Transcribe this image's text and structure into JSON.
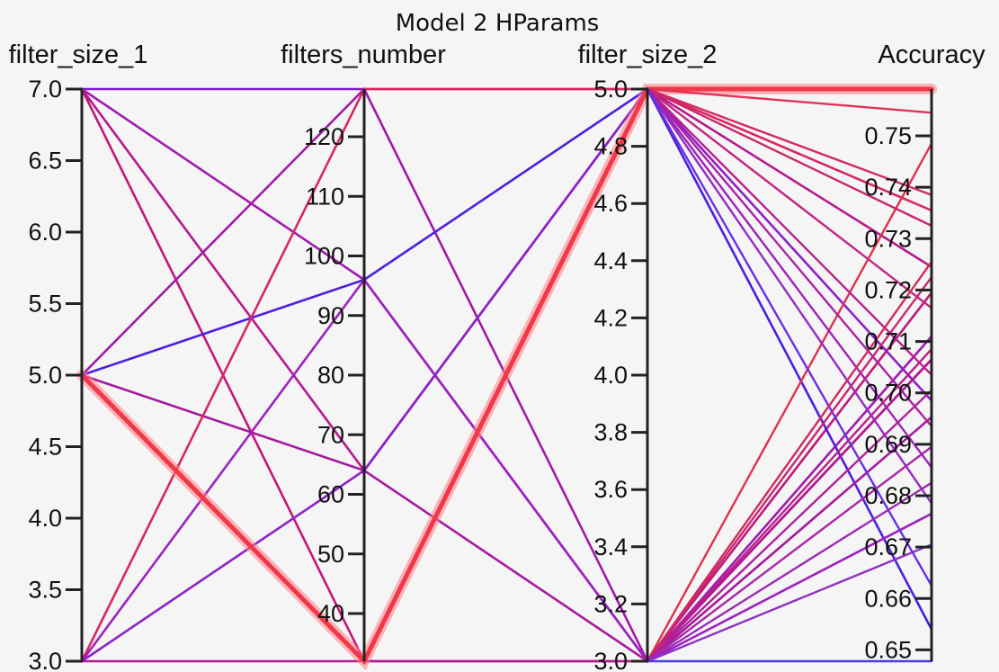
{
  "chart_data": {
    "type": "parallel_coordinates",
    "title": "Model 2 HParams",
    "axes": [
      {
        "key": "filter_size_1",
        "label": "filter_size_1",
        "range": [
          3.0,
          7.0
        ],
        "ticks": [
          "3.0",
          "3.5",
          "4.0",
          "4.5",
          "5.0",
          "5.5",
          "6.0",
          "6.5",
          "7.0"
        ]
      },
      {
        "key": "filters_number",
        "label": "filters_number",
        "range": [
          32,
          128
        ],
        "ticks": [
          "40",
          "50",
          "60",
          "70",
          "80",
          "90",
          "100",
          "110",
          "120"
        ]
      },
      {
        "key": "filter_size_2",
        "label": "filter_size_2",
        "range": [
          3.0,
          5.0
        ],
        "ticks": [
          "3.0",
          "3.2",
          "3.4",
          "3.6",
          "3.8",
          "4.0",
          "4.2",
          "4.4",
          "4.6",
          "4.8",
          "5.0"
        ]
      },
      {
        "key": "accuracy",
        "label": "Accuracy",
        "range": [
          0.6478,
          0.7591
        ],
        "ticks": [
          "0.65",
          "0.66",
          "0.67",
          "0.68",
          "0.69",
          "0.70",
          "0.71",
          "0.72",
          "0.73",
          "0.74",
          "0.75"
        ]
      }
    ],
    "records": [
      {
        "filter_size_1": 7,
        "filters_number": 128,
        "filter_size_2": 5,
        "accuracy": 0.7591,
        "color": "#7c1ac8"
      },
      {
        "filter_size_1": 7,
        "filters_number": 96,
        "filter_size_2": 3,
        "accuracy": 0.711,
        "color": "#a21ab0"
      },
      {
        "filter_size_1": 7,
        "filters_number": 64,
        "filter_size_2": 5,
        "accuracy": 0.7245,
        "color": "#b5198e"
      },
      {
        "filter_size_1": 7,
        "filters_number": 32,
        "filter_size_2": 3,
        "accuracy": 0.7195,
        "color": "#c0187a"
      },
      {
        "filter_size_1": 5,
        "filters_number": 128,
        "filter_size_2": 3,
        "accuracy": 0.7065,
        "color": "#a11aa6"
      },
      {
        "filter_size_1": 5,
        "filters_number": 96,
        "filter_size_2": 5,
        "accuracy": 0.654,
        "color": "#4d1ee0"
      },
      {
        "filter_size_1": 5,
        "filters_number": 64,
        "filter_size_2": 3,
        "accuracy": 0.6953,
        "color": "#a61a9e"
      },
      {
        "filter_size_1": 5,
        "filters_number": 32,
        "filter_size_2": 5,
        "accuracy": 0.7591,
        "color": "#f0384a",
        "highlight": true
      },
      {
        "filter_size_1": 3,
        "filters_number": 128,
        "filter_size_2": 5,
        "accuracy": 0.7355,
        "color": "#d8285e"
      },
      {
        "filter_size_1": 3,
        "filters_number": 96,
        "filter_size_2": 3,
        "accuracy": 0.6765,
        "color": "#9b22c0"
      },
      {
        "filter_size_1": 3,
        "filters_number": 64,
        "filter_size_2": 5,
        "accuracy": 0.6985,
        "color": "#8c22c8"
      },
      {
        "filter_size_1": 3,
        "filters_number": 32,
        "filter_size_2": 3,
        "accuracy": 0.7065,
        "color": "#b3188f"
      }
    ],
    "extra_segments": [
      {
        "from_axis": "filter_size_2",
        "from": 3,
        "to_axis": "accuracy",
        "to": 0.7485,
        "color": "#e0304f"
      },
      {
        "from_axis": "filter_size_2",
        "from": 5,
        "to_axis": "accuracy",
        "to": 0.7545,
        "color": "#e0345a"
      },
      {
        "from_axis": "filter_size_2",
        "from": 5,
        "to_axis": "accuracy",
        "to": 0.7385,
        "color": "#d22a66"
      },
      {
        "from_axis": "filter_size_2",
        "from": 5,
        "to_axis": "accuracy",
        "to": 0.7325,
        "color": "#c9286e"
      },
      {
        "from_axis": "filter_size_2",
        "from": 5,
        "to_axis": "accuracy",
        "to": 0.7165,
        "color": "#c12680"
      },
      {
        "from_axis": "filter_size_2",
        "from": 5,
        "to_axis": "accuracy",
        "to": 0.7035,
        "color": "#b8228a"
      },
      {
        "from_axis": "filter_size_2",
        "from": 5,
        "to_axis": "accuracy",
        "to": 0.6935,
        "color": "#ab22a4"
      },
      {
        "from_axis": "filter_size_2",
        "from": 5,
        "to_axis": "accuracy",
        "to": 0.6855,
        "color": "#9e22b6"
      },
      {
        "from_axis": "filter_size_2",
        "from": 5,
        "to_axis": "accuracy",
        "to": 0.6785,
        "color": "#942ac4"
      },
      {
        "from_axis": "filter_size_2",
        "from": 5,
        "to_axis": "accuracy",
        "to": 0.6625,
        "color": "#6a30e2"
      },
      {
        "from_axis": "filter_size_2",
        "from": 3,
        "to_axis": "accuracy",
        "to": 0.7255,
        "color": "#d02b5e"
      },
      {
        "from_axis": "filter_size_2",
        "from": 3,
        "to_axis": "accuracy",
        "to": 0.7225,
        "color": "#c62970"
      },
      {
        "from_axis": "filter_size_2",
        "from": 3,
        "to_axis": "accuracy",
        "to": 0.7085,
        "color": "#b8218c"
      },
      {
        "from_axis": "filter_size_2",
        "from": 3,
        "to_axis": "accuracy",
        "to": 0.7005,
        "color": "#ae229a"
      },
      {
        "from_axis": "filter_size_2",
        "from": 3,
        "to_axis": "accuracy",
        "to": 0.6895,
        "color": "#a826a6"
      },
      {
        "from_axis": "filter_size_2",
        "from": 3,
        "to_axis": "accuracy",
        "to": 0.6825,
        "color": "#9c2ab4"
      },
      {
        "from_axis": "filter_size_2",
        "from": 3,
        "to_axis": "accuracy",
        "to": 0.6705,
        "color": "#8e30c4"
      },
      {
        "from_axis": "filter_size_2",
        "from": 3,
        "to_axis": "accuracy",
        "to": 0.6478,
        "color": "#4a3ae6"
      }
    ]
  }
}
